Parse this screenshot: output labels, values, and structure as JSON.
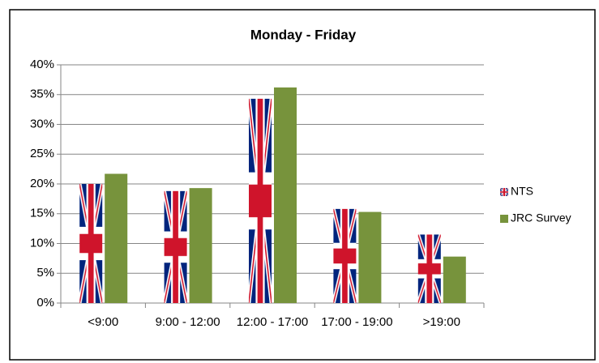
{
  "chart_data": {
    "type": "bar",
    "title": "Monday - Friday",
    "categories": [
      "<9:00",
      "9:00 - 12:00",
      "12:00 - 17:00",
      "17:00 - 19:00",
      ">19:00"
    ],
    "series": [
      {
        "name": "NTS",
        "color": "#00247d",
        "values": [
          20,
          18.8,
          34.3,
          15.8,
          11.5
        ]
      },
      {
        "name": "JRC Survey",
        "color": "#77933c",
        "values": [
          21.7,
          19.3,
          36.2,
          15.3,
          7.8
        ]
      }
    ],
    "ylim": [
      0,
      40
    ],
    "yticks": [
      {
        "value": 0,
        "label": "0%"
      },
      {
        "value": 5,
        "label": "5%"
      },
      {
        "value": 10,
        "label": "10%"
      },
      {
        "value": 15,
        "label": "15%"
      },
      {
        "value": 20,
        "label": "20%"
      },
      {
        "value": 25,
        "label": "25%"
      },
      {
        "value": 30,
        "label": "30%"
      },
      {
        "value": 35,
        "label": "35%"
      },
      {
        "value": 40,
        "label": "40%"
      }
    ],
    "grid": true,
    "legend": "right"
  }
}
